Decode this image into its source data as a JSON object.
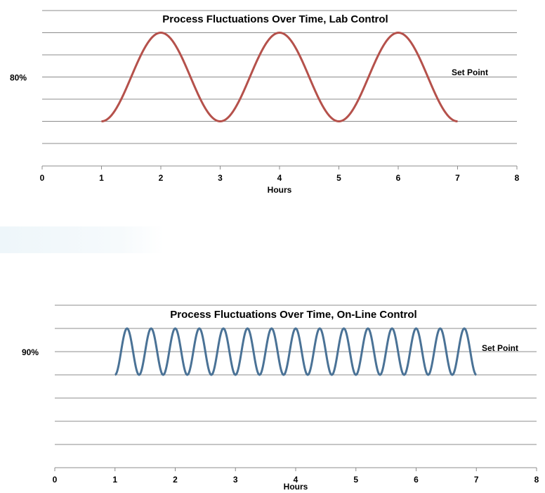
{
  "chart_data": [
    {
      "type": "line",
      "title": "Process Fluctuations Over Time, Lab Control",
      "xlabel": "Hours",
      "ylabel": "",
      "xlim": [
        0,
        8
      ],
      "x_ticks": [
        "0",
        "1",
        "2",
        "3",
        "4",
        "5",
        "6",
        "7",
        "8"
      ],
      "grid": true,
      "gridline_count": 7,
      "y_label_text": "80%",
      "set_point_label": "Set Point",
      "line_color": "#b5514b",
      "series": [
        {
          "x": [
            1,
            2,
            3,
            4,
            5,
            6,
            7
          ],
          "y": [
            0,
            1,
            0,
            1,
            0,
            1,
            0
          ]
        }
      ],
      "wave": {
        "x_start": 1,
        "x_end": 7,
        "period": 2,
        "amplitude_grid_steps": 4
      }
    },
    {
      "type": "line",
      "title": "Process Fluctuations Over Time, On-Line Control",
      "xlabel": "Hours",
      "ylabel": "",
      "xlim": [
        0,
        8
      ],
      "x_ticks": [
        "0",
        "1",
        "2",
        "3",
        "4",
        "5",
        "6",
        "7",
        "8"
      ],
      "grid": true,
      "gridline_count": 7,
      "y_label_text": "90%",
      "set_point_label": "Set Point",
      "line_color": "#4a7296",
      "series": [
        {
          "x": [
            1,
            1.2,
            1.4,
            1.6,
            1.8,
            2.0,
            2.2,
            2.4,
            2.6,
            2.8,
            3.0,
            3.2,
            3.4,
            3.6,
            3.8,
            4.0,
            4.2,
            4.4,
            4.6,
            4.8,
            5.0,
            5.2,
            5.4,
            5.6,
            5.8,
            6.0,
            6.2,
            6.4,
            6.6,
            6.8,
            7.0
          ],
          "y": [
            0,
            1,
            0,
            1,
            0,
            1,
            0,
            1,
            0,
            1,
            0,
            1,
            0,
            1,
            0,
            1,
            0,
            1,
            0,
            1,
            0,
            1,
            0,
            1,
            0,
            1,
            0,
            1,
            0,
            1,
            0
          ]
        }
      ],
      "wave": {
        "x_start": 1,
        "x_end": 7,
        "period": 0.4,
        "amplitude_grid_steps": 2
      }
    }
  ]
}
